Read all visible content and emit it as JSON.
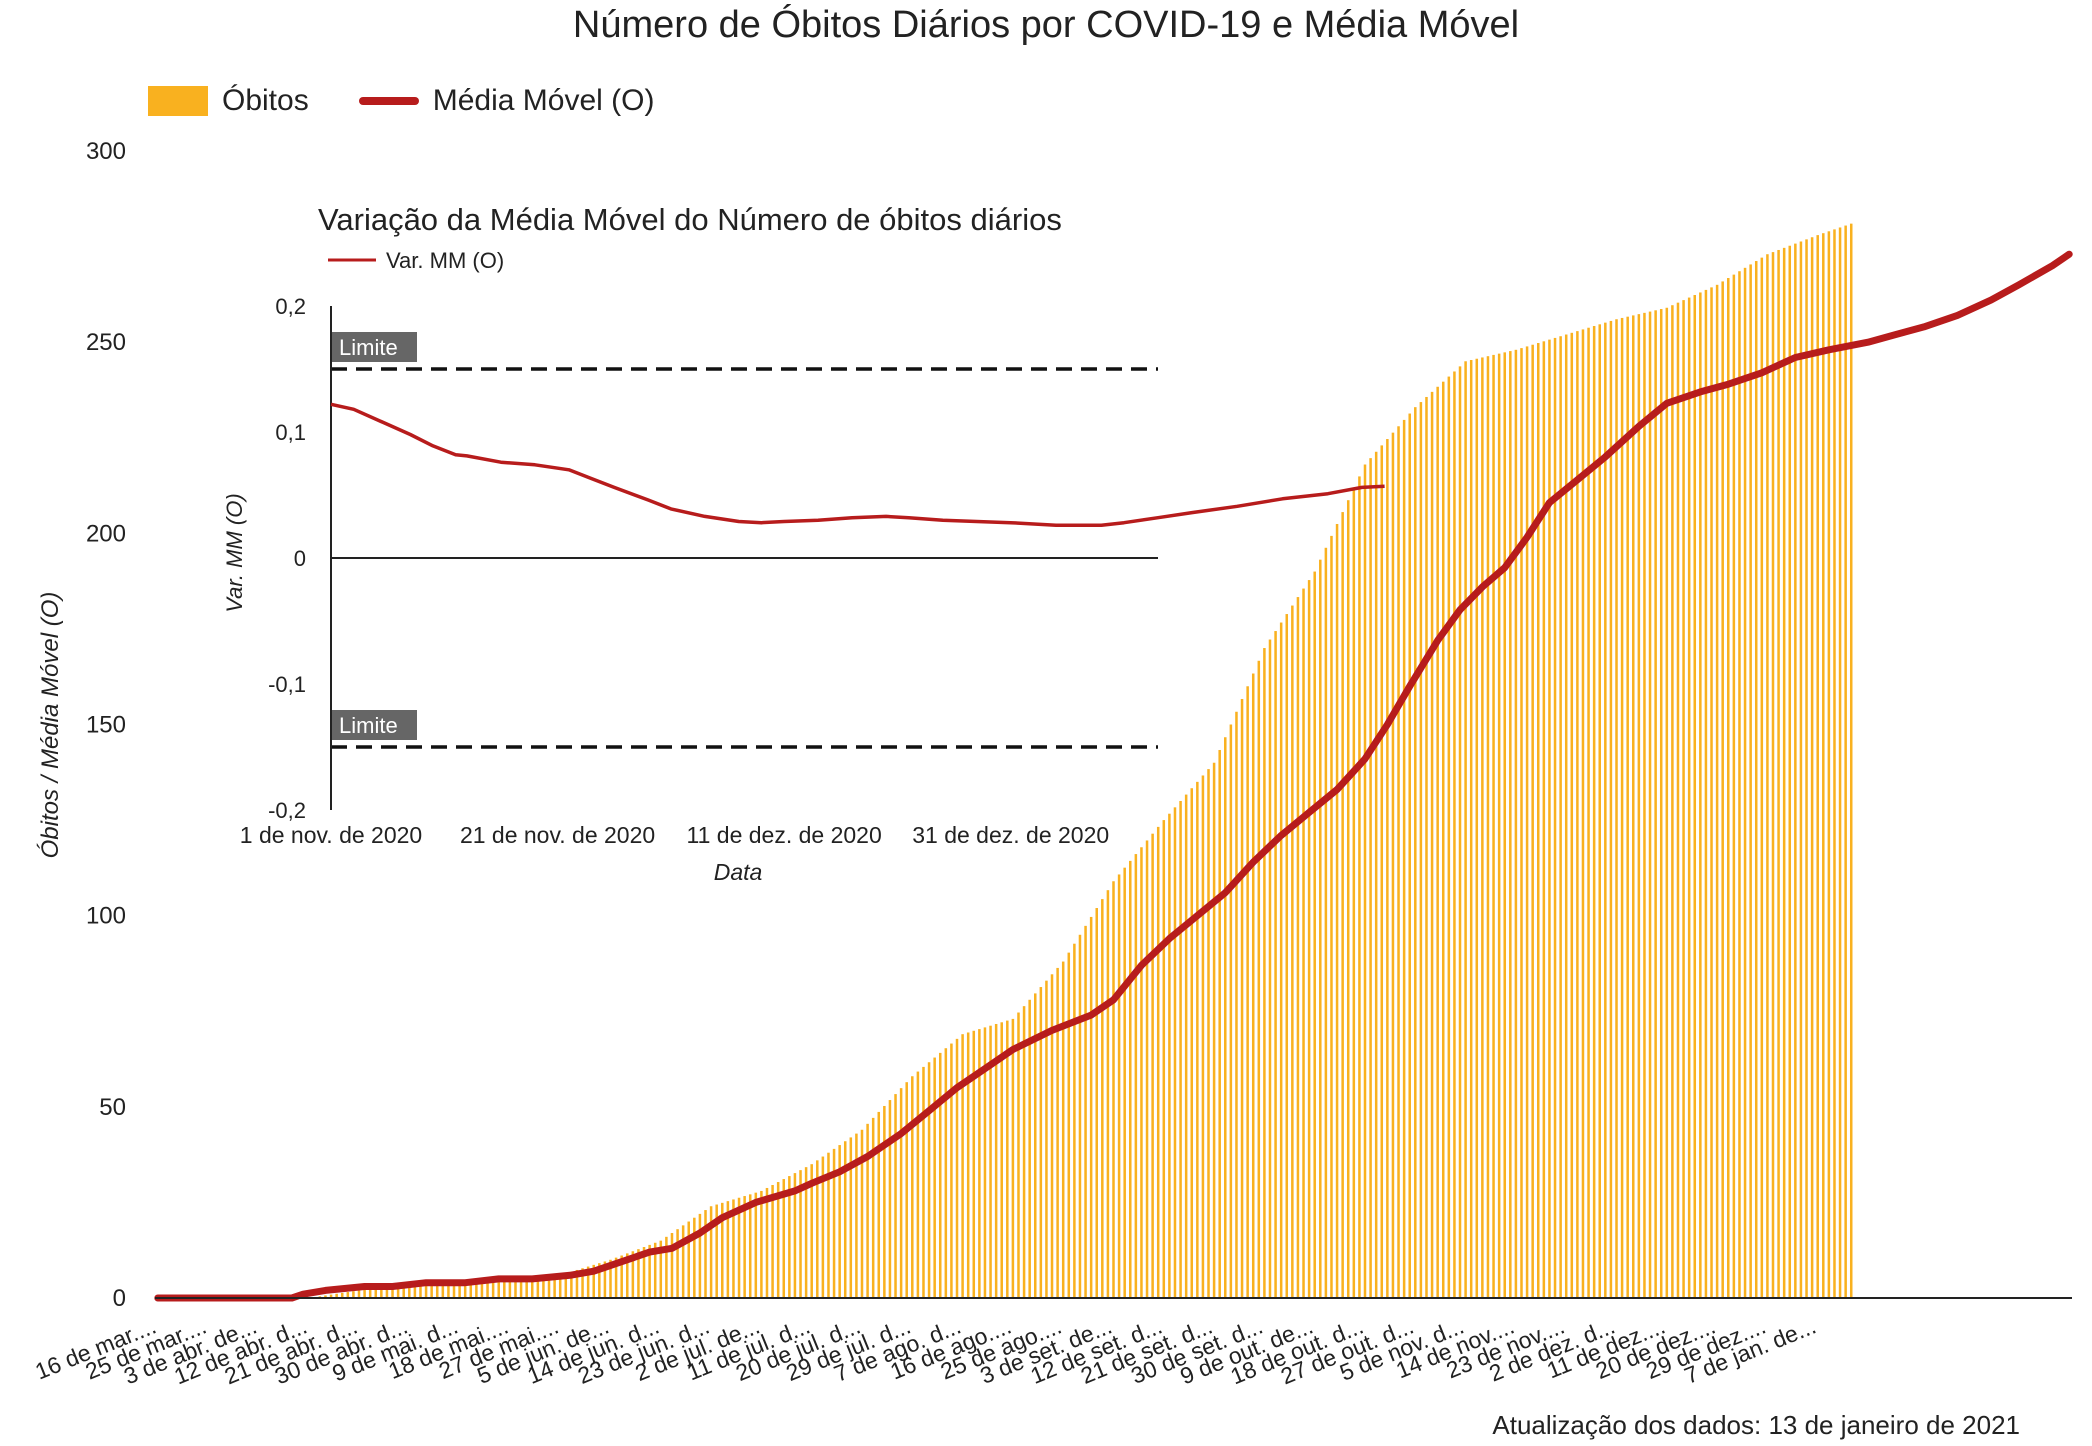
{
  "title": "Número de Óbitos Diários por COVID-19 e Média Móvel",
  "legend": [
    {
      "label": "Óbitos",
      "kind": "bar",
      "color": "#F9B11F"
    },
    {
      "label": "Média Móvel (O)",
      "kind": "line",
      "color": "#B71C1C"
    }
  ],
  "update_note": "Atualização dos dados: 13 de janeiro de 2021",
  "chart_data": [
    {
      "type": "bar",
      "overlay": "line",
      "title": "Número de Óbitos Diários por COVID-19 e Média Móvel",
      "ylabel": "Óbitos / Média Móvel (O)",
      "xlabel": "",
      "ylim": [
        0,
        300
      ],
      "yticks": [
        0,
        50,
        100,
        150,
        200,
        250,
        300
      ],
      "xlim": [
        "16 de mar. de 2020",
        "13 de jan. de 2021"
      ],
      "x_tick_labels": [
        "16 de mar....",
        "25 de mar....",
        "3 de abr. de...",
        "12 de abr. d...",
        "21 de abr. d...",
        "30 de abr. d...",
        "9 de mai. d...",
        "18 de mai....",
        "27 de mai....",
        "5 de jun. de...",
        "14 de jun. d...",
        "23 de jun. d...",
        "2 de jul. de...",
        "11 de jul. d...",
        "20 de jul. d...",
        "29 de jul. d...",
        "7 de ago. d...",
        "16 de ago....",
        "25 de ago....",
        "3 de set. de...",
        "12 de set. d...",
        "21 de set. d...",
        "30 de set. d...",
        "9 de out. de...",
        "18 de out. d...",
        "27 de out. d...",
        "5 de nov. d...",
        "14 de nov....",
        "23 de nov....",
        "2 de dez. d...",
        "11 de dez....",
        "20 de dez....",
        "29 de dez....",
        "7 de jan. de..."
      ],
      "grid": false,
      "legend_position": "top-left",
      "series": [
        {
          "name": "Óbitos",
          "type": "bar",
          "color": "#F9B11F",
          "day_offsets": [
            0,
            9,
            18,
            27,
            36,
            45,
            54,
            63,
            72,
            81,
            90,
            99,
            108,
            117,
            126,
            135,
            144,
            153,
            162,
            171,
            180,
            189,
            198,
            207,
            216,
            225,
            234,
            243,
            252,
            261,
            270,
            279,
            288,
            297,
            303
          ],
          "values": [
            0,
            0,
            0,
            0,
            2,
            3,
            4,
            5,
            6,
            10,
            15,
            24,
            28,
            35,
            44,
            58,
            69,
            73,
            88,
            109,
            125,
            140,
            170,
            190,
            218,
            233,
            245,
            248,
            252,
            256,
            259,
            265,
            273,
            278,
            281
          ]
        },
        {
          "name": "Média Móvel (O)",
          "type": "line",
          "color": "#B71C1C",
          "points": [
            [
              0,
              0
            ],
            [
              12,
              0
            ],
            [
              24,
              0
            ],
            [
              26,
              1
            ],
            [
              30,
              2
            ],
            [
              37,
              3
            ],
            [
              42,
              3
            ],
            [
              48,
              4
            ],
            [
              55,
              4
            ],
            [
              61,
              5
            ],
            [
              67,
              5
            ],
            [
              74,
              6
            ],
            [
              78,
              7
            ],
            [
              82,
              9
            ],
            [
              88,
              12
            ],
            [
              92,
              13
            ],
            [
              97,
              17
            ],
            [
              101,
              21
            ],
            [
              107,
              25
            ],
            [
              114,
              28
            ],
            [
              117,
              30
            ],
            [
              122,
              33
            ],
            [
              127,
              37
            ],
            [
              133,
              43
            ],
            [
              138,
              49
            ],
            [
              143,
              55
            ],
            [
              148,
              60
            ],
            [
              153,
              65
            ],
            [
              160,
              70
            ],
            [
              167,
              74
            ],
            [
              171,
              78
            ],
            [
              176,
              87
            ],
            [
              181,
              94
            ],
            [
              186,
              100
            ],
            [
              191,
              106
            ],
            [
              196,
              114
            ],
            [
              201,
              121
            ],
            [
              206,
              127
            ],
            [
              211,
              133
            ],
            [
              216,
              141
            ],
            [
              220,
              150
            ],
            [
              224,
              160
            ],
            [
              229,
              172
            ],
            [
              233,
              180
            ],
            [
              237,
              186
            ],
            [
              241,
              191
            ],
            [
              245,
              199
            ],
            [
              249,
              208
            ],
            [
              254,
              214
            ],
            [
              259,
              220
            ],
            [
              265,
              228
            ],
            [
              270,
              234
            ],
            [
              276,
              237
            ],
            [
              281,
              239
            ],
            [
              287,
              242
            ],
            [
              293,
              246
            ],
            [
              299,
              248
            ],
            [
              306,
              250
            ],
            [
              311,
              252
            ],
            [
              316,
              254
            ],
            [
              322,
              257
            ],
            [
              328,
              261
            ],
            [
              333,
              265
            ],
            [
              339,
              270
            ],
            [
              342,
              273
            ]
          ]
        }
      ]
    },
    {
      "type": "line",
      "title": "Variação da Média Móvel do Número de óbitos diários",
      "xlabel": "Data",
      "ylabel": "Var. MM (O)",
      "ylim": [
        -0.2,
        0.2
      ],
      "yticks": [
        "0,2",
        "0,1",
        "0",
        "-0,1",
        "-0,2"
      ],
      "ytick_values": [
        0.2,
        0.1,
        0,
        -0.1,
        -0.2
      ],
      "xlim": [
        "1 de nov. de 2020",
        "13 de jan. de 2021"
      ],
      "x_tick_labels": [
        "1 de nov. de 2020",
        "21 de nov. de 2020",
        "11 de dez. de 2020",
        "31 de dez. de 2020"
      ],
      "x_tick_days": [
        0,
        20,
        40,
        60
      ],
      "limit_label": "Limite",
      "limits": [
        0.15,
        -0.15
      ],
      "legend_position": "top-left",
      "series": [
        {
          "name": "Var. MM (O)",
          "color": "#B71C1C",
          "points": [
            [
              0,
              0.122
            ],
            [
              2,
              0.118
            ],
            [
              5,
              0.106
            ],
            [
              7,
              0.098
            ],
            [
              9,
              0.089
            ],
            [
              11,
              0.082
            ],
            [
              12,
              0.081
            ],
            [
              15,
              0.076
            ],
            [
              18,
              0.074
            ],
            [
              21,
              0.07
            ],
            [
              23,
              0.063
            ],
            [
              25,
              0.056
            ],
            [
              28,
              0.046
            ],
            [
              30,
              0.039
            ],
            [
              33,
              0.033
            ],
            [
              36,
              0.029
            ],
            [
              38,
              0.028
            ],
            [
              40,
              0.029
            ],
            [
              43,
              0.03
            ],
            [
              46,
              0.032
            ],
            [
              49,
              0.033
            ],
            [
              51,
              0.032
            ],
            [
              54,
              0.03
            ],
            [
              57,
              0.029
            ],
            [
              60,
              0.028
            ],
            [
              64,
              0.026
            ],
            [
              68,
              0.026
            ],
            [
              70,
              0.028
            ],
            [
              73,
              0.032
            ],
            [
              76,
              0.036
            ],
            [
              80,
              0.041
            ],
            [
              84,
              0.047
            ],
            [
              88,
              0.051
            ],
            [
              91,
              0.056
            ],
            [
              93,
              0.057
            ]
          ]
        }
      ]
    }
  ]
}
